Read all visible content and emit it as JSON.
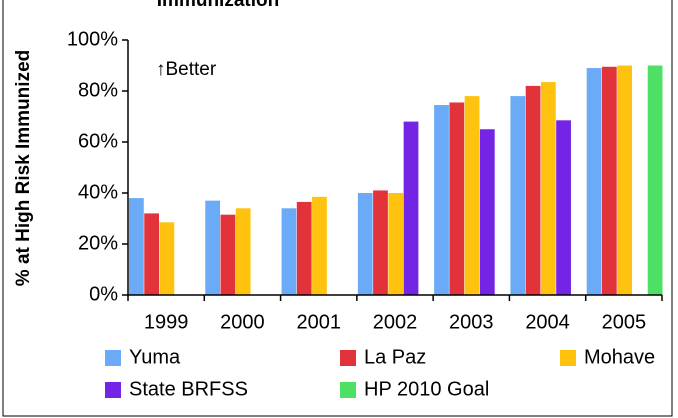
{
  "chart_data": {
    "type": "bar",
    "title": "Immunization",
    "ylabel": "% at High Risk Immunized",
    "annotation": "↑Better",
    "categories": [
      "1999",
      "2000",
      "2001",
      "2002",
      "2003",
      "2004",
      "2005"
    ],
    "series": [
      {
        "name": "Yuma",
        "color": "#6aaaf7",
        "values": [
          38,
          37,
          34,
          40,
          74.5,
          78,
          89
        ]
      },
      {
        "name": "La Paz",
        "color": "#e2323a",
        "values": [
          32,
          31.5,
          36.5,
          41,
          75.5,
          82,
          89.5
        ]
      },
      {
        "name": "Mohave",
        "color": "#ffc20e",
        "values": [
          28.5,
          34,
          38.5,
          40,
          78,
          83.5,
          90
        ]
      },
      {
        "name": "State BRFSS",
        "color": "#7424e4",
        "values": [
          null,
          null,
          null,
          68,
          65,
          68.5,
          null
        ]
      },
      {
        "name": "HP 2010 Goal",
        "color": "#4ee065",
        "values": [
          null,
          null,
          null,
          null,
          null,
          null,
          90
        ]
      }
    ],
    "ylim": [
      0,
      100
    ],
    "yticks": [
      {
        "value": 0,
        "label": "0%"
      },
      {
        "value": 20,
        "label": "20%"
      },
      {
        "value": 40,
        "label": "40%"
      },
      {
        "value": 60,
        "label": "60%"
      },
      {
        "value": 80,
        "label": "80%"
      },
      {
        "value": 100,
        "label": "100%"
      }
    ],
    "grid": false
  }
}
